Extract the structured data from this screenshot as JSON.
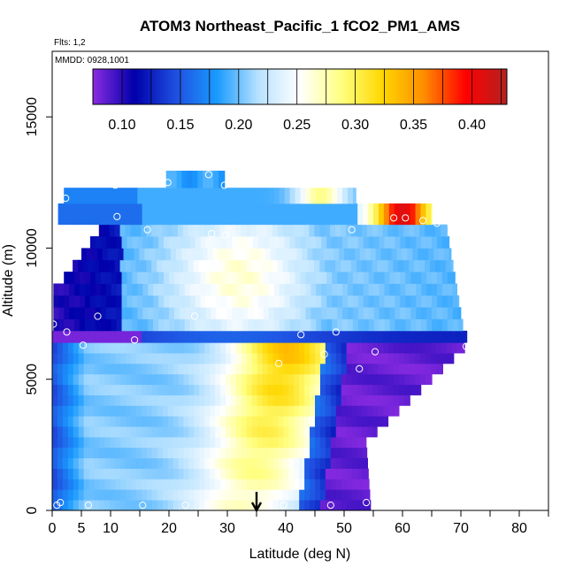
{
  "chart_data": {
    "type": "heatmap",
    "title": "ATOM3 Northeast_Pacific_1 fCO2_PM1_AMS",
    "annotations": [
      "Flts: 1,2",
      "MMDD: 0928,1001"
    ],
    "xlabel": "Latitude (deg N)",
    "ylabel": "Altitude (m)",
    "xlim": [
      0,
      85
    ],
    "ylim": [
      0,
      17500
    ],
    "x_ticks": [
      0,
      5,
      10,
      20,
      30,
      40,
      50,
      60,
      70,
      80
    ],
    "x_minor_ticks": [
      15,
      25,
      35,
      45,
      55,
      65,
      75,
      85
    ],
    "y_ticks": [
      0,
      5000,
      10000,
      15000
    ],
    "colorbar": {
      "min": 0.075,
      "max": 0.43,
      "ticks": [
        0.1,
        0.15,
        0.2,
        0.25,
        0.3,
        0.35,
        0.4
      ],
      "tick_labels": [
        "0.10",
        "0.15",
        "0.20",
        "0.25",
        "0.30",
        "0.35",
        "0.40"
      ],
      "colors": [
        "#8a2be2",
        "#0000aa",
        "#1f4fe0",
        "#1a9bff",
        "#b8e2ff",
        "#ffffff",
        "#ffff80",
        "#ffd700",
        "#ff8c00",
        "#ff0000",
        "#b22222"
      ]
    },
    "arrow_latitude": 35,
    "sample_points": [
      {
        "lat": 0.2,
        "alt": 7100
      },
      {
        "lat": 2.5,
        "alt": 6800
      },
      {
        "lat": 2.3,
        "alt": 11900
      },
      {
        "lat": 5.3,
        "alt": 6300
      },
      {
        "lat": 7.8,
        "alt": 7400
      },
      {
        "lat": 11.1,
        "alt": 11200
      },
      {
        "lat": 10.8,
        "alt": 12400
      },
      {
        "lat": 14.1,
        "alt": 6500
      },
      {
        "lat": 16.3,
        "alt": 10700
      },
      {
        "lat": 19.8,
        "alt": 12500
      },
      {
        "lat": 24.4,
        "alt": 7400
      },
      {
        "lat": 26.8,
        "alt": 12800
      },
      {
        "lat": 27.3,
        "alt": 10550
      },
      {
        "lat": 29.7,
        "alt": 10500
      },
      {
        "lat": 29.5,
        "alt": 12400
      },
      {
        "lat": 32.1,
        "alt": 9950
      },
      {
        "lat": 38.8,
        "alt": 5600
      },
      {
        "lat": 42.6,
        "alt": 6700
      },
      {
        "lat": 46.6,
        "alt": 5950
      },
      {
        "lat": 48.6,
        "alt": 6800
      },
      {
        "lat": 51.3,
        "alt": 10700
      },
      {
        "lat": 52.6,
        "alt": 5400
      },
      {
        "lat": 55.3,
        "alt": 6050
      },
      {
        "lat": 58.5,
        "alt": 11150
      },
      {
        "lat": 60.5,
        "alt": 11150
      },
      {
        "lat": 63.5,
        "alt": 11050
      },
      {
        "lat": 65.9,
        "alt": 10950
      },
      {
        "lat": 68.3,
        "alt": 10850
      },
      {
        "lat": 70.9,
        "alt": 6250
      },
      {
        "lat": 1.4,
        "alt": 300
      },
      {
        "lat": 0.8,
        "alt": 200
      },
      {
        "lat": 6.2,
        "alt": 200
      },
      {
        "lat": 15.5,
        "alt": 200
      },
      {
        "lat": 22.8,
        "alt": 200
      },
      {
        "lat": 39.6,
        "alt": 200
      },
      {
        "lat": 47.7,
        "alt": 200
      },
      {
        "lat": 53.8,
        "alt": 300
      }
    ]
  }
}
